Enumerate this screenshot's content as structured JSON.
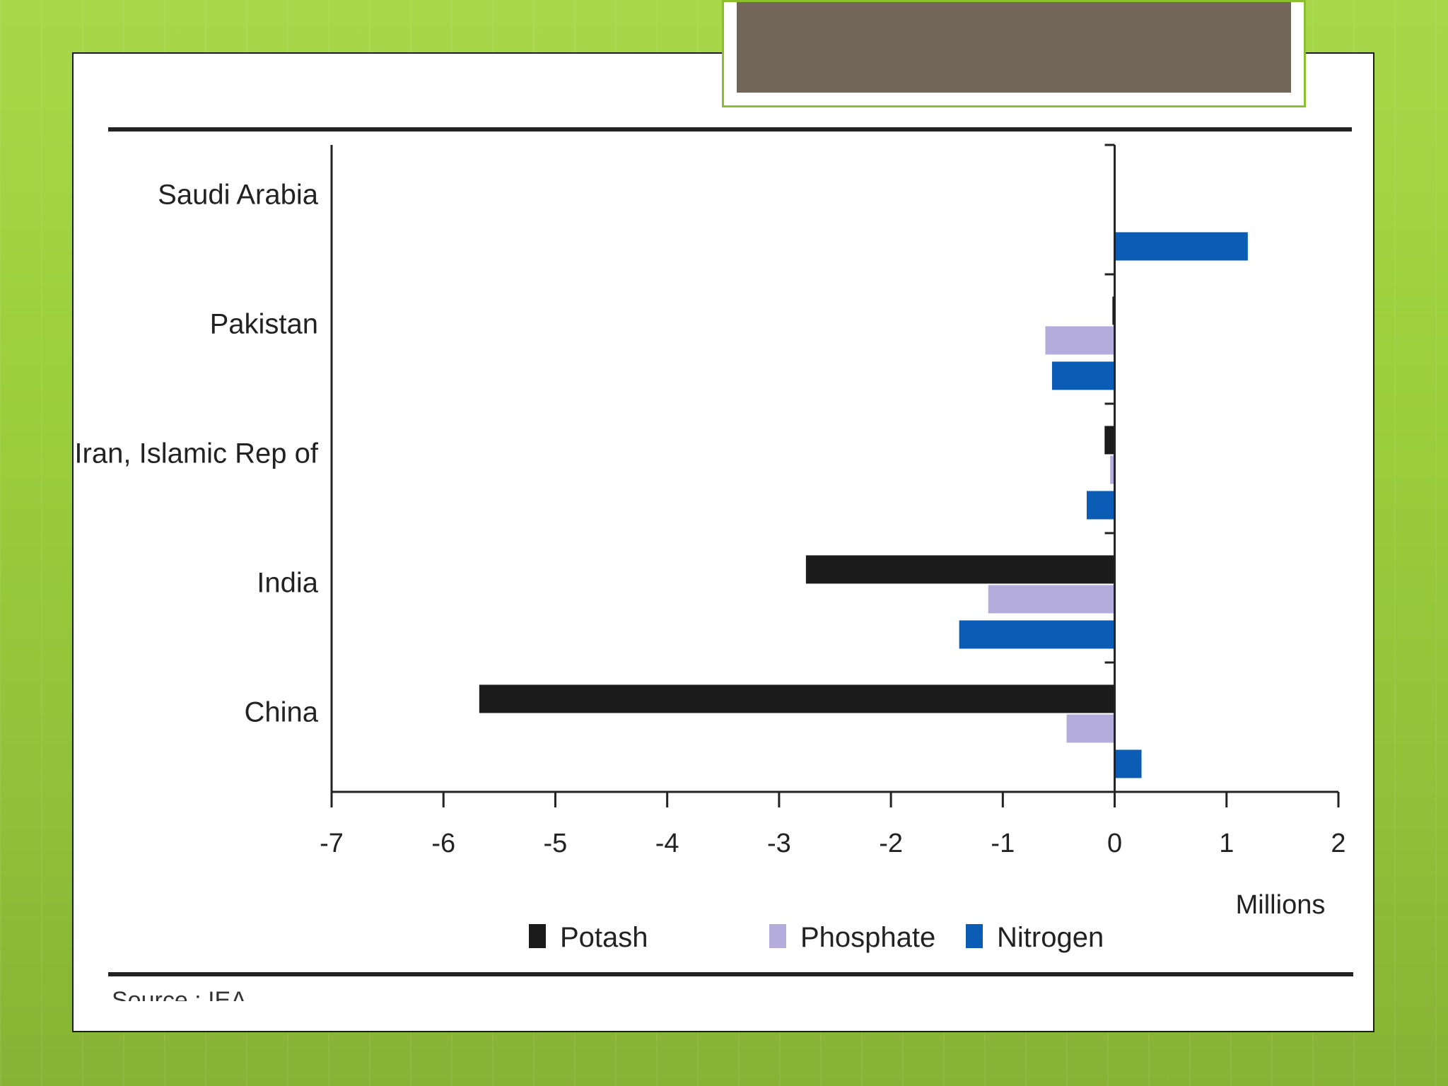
{
  "chart_data": {
    "type": "bar",
    "orientation": "horizontal",
    "categories": [
      "Saudi Arabia",
      "Pakistan",
      "Iran, Islamic Rep of",
      "India",
      "China"
    ],
    "series": [
      {
        "name": "Potash",
        "color": "#1b1b1b",
        "values": [
          0,
          -0.02,
          -0.09,
          -2.76,
          -5.68
        ]
      },
      {
        "name": "Phosphate",
        "color": "#b4addb",
        "values": [
          0,
          -0.62,
          -0.04,
          -1.13,
          -0.43
        ]
      },
      {
        "name": "Nitrogen",
        "color": "#0b5cb4",
        "values": [
          1.19,
          -0.56,
          -0.25,
          -1.39,
          0.24
        ]
      }
    ],
    "xlim": [
      -7,
      2
    ],
    "xticks": [
      -7,
      -6,
      -5,
      -4,
      -3,
      -2,
      -1,
      0,
      1,
      2
    ],
    "xunit": "Millions",
    "grid": false,
    "legend_position": "bottom"
  },
  "source_text": "Source : IEA"
}
